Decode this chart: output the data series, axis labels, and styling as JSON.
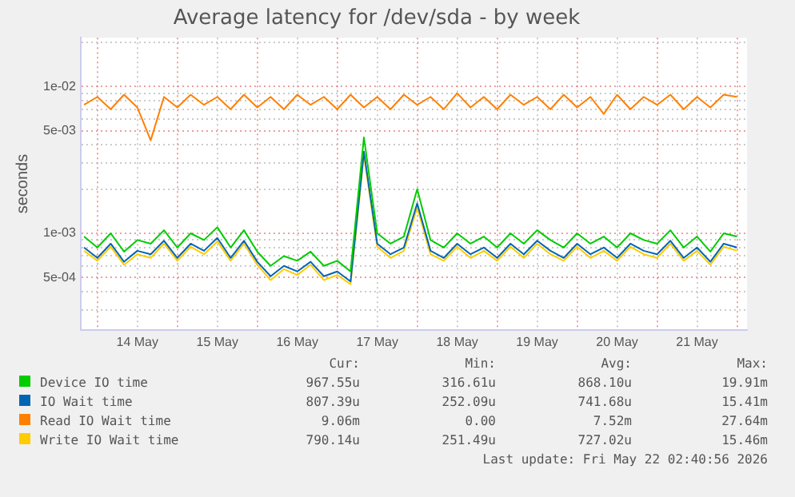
{
  "chart_data": {
    "type": "line",
    "title": "Average latency for /dev/sda - by week",
    "ylabel": "seconds",
    "x": [
      "2026-05-13T20:00",
      "2026-05-14T00:00",
      "2026-05-14T04:00",
      "2026-05-14T08:00",
      "2026-05-14T12:00",
      "2026-05-14T16:00",
      "2026-05-14T20:00",
      "2026-05-15T00:00",
      "2026-05-15T04:00",
      "2026-05-15T08:00",
      "2026-05-15T12:00",
      "2026-05-15T16:00",
      "2026-05-15T20:00",
      "2026-05-16T00:00",
      "2026-05-16T04:00",
      "2026-05-16T08:00",
      "2026-05-16T12:00",
      "2026-05-16T16:00",
      "2026-05-16T20:00",
      "2026-05-17T00:00",
      "2026-05-17T04:00",
      "2026-05-17T08:00",
      "2026-05-17T12:00",
      "2026-05-17T16:00",
      "2026-05-17T20:00",
      "2026-05-18T00:00",
      "2026-05-18T04:00",
      "2026-05-18T08:00",
      "2026-05-18T12:00",
      "2026-05-18T16:00",
      "2026-05-18T20:00",
      "2026-05-19T00:00",
      "2026-05-19T04:00",
      "2026-05-19T08:00",
      "2026-05-19T12:00",
      "2026-05-19T16:00",
      "2026-05-19T20:00",
      "2026-05-20T00:00",
      "2026-05-20T04:00",
      "2026-05-20T08:00",
      "2026-05-20T12:00",
      "2026-05-20T16:00",
      "2026-05-20T20:00",
      "2026-05-21T00:00",
      "2026-05-21T04:00",
      "2026-05-21T08:00",
      "2026-05-21T12:00",
      "2026-05-21T16:00",
      "2026-05-21T20:00",
      "2026-05-22T00:00"
    ],
    "series": [
      {
        "name": "Device IO time",
        "color": "#00cc00",
        "values": [
          0.00095,
          0.0008,
          0.001,
          0.00075,
          0.0009,
          0.00085,
          0.00105,
          0.0008,
          0.001,
          0.0009,
          0.0011,
          0.0008,
          0.00105,
          0.00075,
          0.0006,
          0.0007,
          0.00065,
          0.00075,
          0.0006,
          0.00065,
          0.00055,
          0.0045,
          0.001,
          0.00085,
          0.00095,
          0.002,
          0.0009,
          0.0008,
          0.001,
          0.00085,
          0.00095,
          0.0008,
          0.001,
          0.00085,
          0.00105,
          0.0009,
          0.0008,
          0.001,
          0.00085,
          0.00095,
          0.0008,
          0.001,
          0.0009,
          0.00085,
          0.00105,
          0.0008,
          0.00095,
          0.00075,
          0.001,
          0.00095
        ]
      },
      {
        "name": "IO Wait time",
        "color": "#0066b3",
        "values": [
          0.0008,
          0.00068,
          0.00085,
          0.00064,
          0.00076,
          0.00072,
          0.00089,
          0.00068,
          0.00085,
          0.00076,
          0.00093,
          0.00068,
          0.00089,
          0.00064,
          0.00051,
          0.0006,
          0.00055,
          0.00064,
          0.00051,
          0.00055,
          0.00047,
          0.0036,
          0.00085,
          0.00072,
          0.0008,
          0.0016,
          0.00076,
          0.00068,
          0.00085,
          0.00072,
          0.0008,
          0.00068,
          0.00085,
          0.00072,
          0.00089,
          0.00076,
          0.00068,
          0.00085,
          0.00072,
          0.0008,
          0.00068,
          0.00085,
          0.00076,
          0.00072,
          0.00089,
          0.00068,
          0.0008,
          0.00064,
          0.00085,
          0.0008
        ]
      },
      {
        "name": "Read IO Wait time",
        "color": "#ff8000",
        "values": [
          0.0075,
          0.0085,
          0.007,
          0.0088,
          0.0072,
          0.0043,
          0.0085,
          0.0072,
          0.0088,
          0.0075,
          0.0085,
          0.007,
          0.0088,
          0.0072,
          0.0085,
          0.007,
          0.0088,
          0.0075,
          0.0085,
          0.007,
          0.0088,
          0.0072,
          0.0085,
          0.007,
          0.0088,
          0.0075,
          0.0085,
          0.007,
          0.009,
          0.0072,
          0.0085,
          0.007,
          0.0088,
          0.0075,
          0.0085,
          0.007,
          0.0088,
          0.0072,
          0.0085,
          0.0065,
          0.0088,
          0.007,
          0.0085,
          0.0075,
          0.0088,
          0.007,
          0.0085,
          0.0072,
          0.0088,
          0.0085
        ]
      },
      {
        "name": "Write IO Wait time",
        "color": "#ffcc00",
        "values": [
          0.00076,
          0.00065,
          0.00081,
          0.00061,
          0.00072,
          0.00068,
          0.00085,
          0.00065,
          0.00081,
          0.00072,
          0.00088,
          0.00065,
          0.00085,
          0.00061,
          0.00048,
          0.00057,
          0.00052,
          0.00061,
          0.00048,
          0.00052,
          0.00045,
          0.0034,
          0.00081,
          0.00068,
          0.00076,
          0.0015,
          0.00072,
          0.00065,
          0.00081,
          0.00068,
          0.00076,
          0.00065,
          0.00081,
          0.00068,
          0.00085,
          0.00072,
          0.00065,
          0.00081,
          0.00068,
          0.00076,
          0.00065,
          0.00081,
          0.00072,
          0.00068,
          0.00085,
          0.00065,
          0.00076,
          0.00061,
          0.00081,
          0.00076
        ]
      }
    ],
    "log": true,
    "xlim": [
      "2026-05-13T19:00",
      "2026-05-22T03:00"
    ],
    "xticks": [
      {
        "value": "2026-05-14T00:00",
        "label": null
      },
      {
        "value": "2026-05-14T12:00",
        "label": "14 May"
      },
      {
        "value": "2026-05-15T00:00",
        "label": null
      },
      {
        "value": "2026-05-15T12:00",
        "label": "15 May"
      },
      {
        "value": "2026-05-16T00:00",
        "label": null
      },
      {
        "value": "2026-05-16T12:00",
        "label": "16 May"
      },
      {
        "value": "2026-05-17T00:00",
        "label": null
      },
      {
        "value": "2026-05-17T12:00",
        "label": "17 May"
      },
      {
        "value": "2026-05-18T00:00",
        "label": null
      },
      {
        "value": "2026-05-18T12:00",
        "label": "18 May"
      },
      {
        "value": "2026-05-19T00:00",
        "label": null
      },
      {
        "value": "2026-05-19T12:00",
        "label": "19 May"
      },
      {
        "value": "2026-05-20T00:00",
        "label": null
      },
      {
        "value": "2026-05-20T12:00",
        "label": "20 May"
      },
      {
        "value": "2026-05-21T00:00",
        "label": null
      },
      {
        "value": "2026-05-21T12:00",
        "label": "21 May"
      },
      {
        "value": "2026-05-22T00:00",
        "label": null
      }
    ],
    "ylim": [
      0.00022,
      0.0215
    ],
    "yticks": [
      {
        "value": 0.0003,
        "label": null
      },
      {
        "value": 0.0004,
        "label": null
      },
      {
        "value": 0.0005,
        "label": "5e-04"
      },
      {
        "value": 0.0006,
        "label": null
      },
      {
        "value": 0.0007,
        "label": null
      },
      {
        "value": 0.0008,
        "label": null
      },
      {
        "value": 0.0009,
        "label": null
      },
      {
        "value": 0.001,
        "label": "1e-03"
      },
      {
        "value": 0.002,
        "label": null
      },
      {
        "value": 0.003,
        "label": null
      },
      {
        "value": 0.004,
        "label": null
      },
      {
        "value": 0.005,
        "label": "5e-03"
      },
      {
        "value": 0.006,
        "label": null
      },
      {
        "value": 0.007,
        "label": null
      },
      {
        "value": 0.008,
        "label": null
      },
      {
        "value": 0.009,
        "label": null
      },
      {
        "value": 0.01,
        "label": "1e-02"
      },
      {
        "value": 0.02,
        "label": null
      }
    ],
    "grid": true,
    "legend": "bottom",
    "marker": "none",
    "line_style": "solid",
    "annotations": [
      "Cur:",
      "Min:",
      "Avg:",
      "Max:",
      "967.55u",
      "316.61u",
      "868.10u",
      "19.91m",
      "807.39u",
      "252.09u",
      "741.68u",
      "15.41m",
      "9.06m",
      "0.00",
      "7.52m",
      "27.64m",
      "790.14u",
      "251.49u",
      "727.02u",
      "15.46m",
      "Last update: Fri May 22 02:40:56 2026"
    ]
  }
}
